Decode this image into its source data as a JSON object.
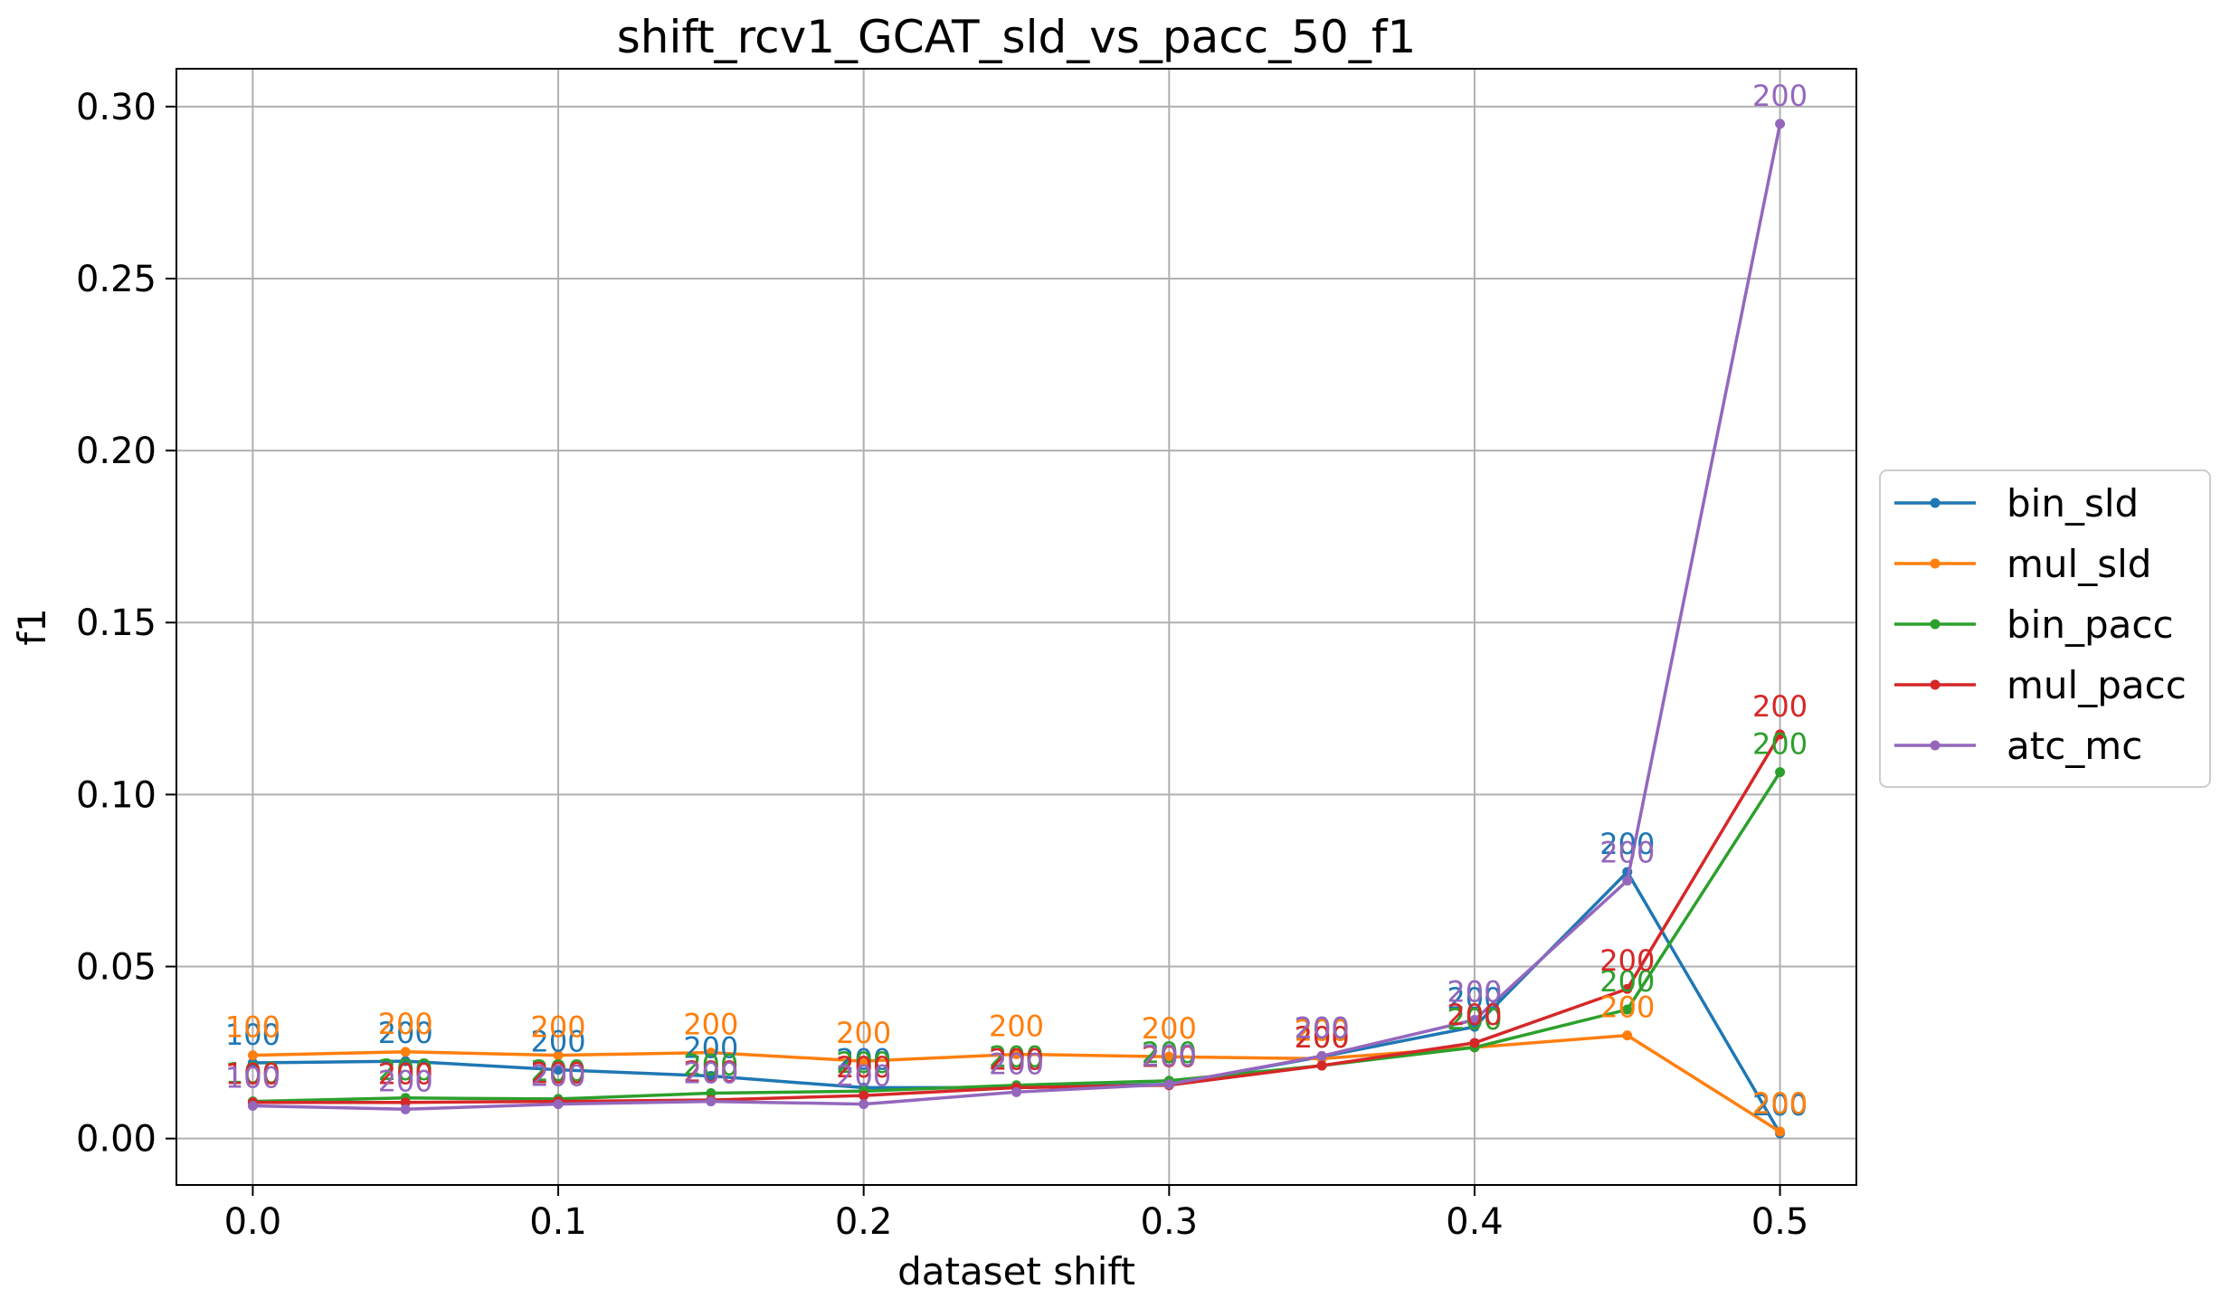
{
  "chart_data": {
    "type": "line",
    "title": "shift_rcv1_GCAT_sld_vs_pacc_50_f1",
    "xlabel": "dataset shift",
    "ylabel": "f1",
    "xlim": [
      -0.025,
      0.525
    ],
    "ylim": [
      -0.0135,
      0.311
    ],
    "grid": true,
    "legend_placement": "center-right outside",
    "x": [
      0.0,
      0.05,
      0.1,
      0.15,
      0.2,
      0.25,
      0.3,
      0.35,
      0.4,
      0.45,
      0.5
    ],
    "xticks": [
      0.0,
      0.1,
      0.2,
      0.3,
      0.4,
      0.5
    ],
    "xtick_labels": [
      "0.0",
      "0.1",
      "0.2",
      "0.3",
      "0.4",
      "0.5"
    ],
    "yticks": [
      0.0,
      0.05,
      0.1,
      0.15,
      0.2,
      0.25,
      0.3
    ],
    "ytick_labels": [
      "0.00",
      "0.05",
      "0.10",
      "0.15",
      "0.20",
      "0.25",
      "0.30"
    ],
    "series": [
      {
        "name": "bin_sld",
        "color": "#1f77b4",
        "values": [
          0.022,
          0.0225,
          0.02,
          0.0182,
          0.0148,
          0.0148,
          0.0158,
          0.0238,
          0.0325,
          0.0775,
          0.0015
        ],
        "labels": [
          "100",
          "200",
          "200",
          "200",
          "200",
          "200",
          "200",
          "200",
          "200",
          "200",
          "200"
        ]
      },
      {
        "name": "mul_sld",
        "color": "#ff7f0e",
        "values": [
          0.0242,
          0.0252,
          0.0242,
          0.025,
          0.0225,
          0.0245,
          0.0238,
          0.0232,
          0.0265,
          0.03,
          0.002
        ],
        "labels": [
          "100",
          "200",
          "200",
          "200",
          "200",
          "200",
          "200",
          "200",
          "200",
          "200",
          "200"
        ]
      },
      {
        "name": "bin_pacc",
        "color": "#2ca02c",
        "values": [
          0.0108,
          0.0118,
          0.0115,
          0.0132,
          0.0138,
          0.0155,
          0.0168,
          0.0212,
          0.0265,
          0.0375,
          0.1065
        ],
        "labels": [
          "100",
          "200",
          "200",
          "200",
          "200",
          "200",
          "200",
          "200",
          "200",
          "200",
          "200"
        ]
      },
      {
        "name": "mul_pacc",
        "color": "#d62728",
        "values": [
          0.0105,
          0.0105,
          0.0108,
          0.0112,
          0.0125,
          0.0148,
          0.0155,
          0.0212,
          0.0278,
          0.0435,
          0.1175
        ],
        "labels": [
          "100",
          "200",
          "200",
          "200",
          "200",
          "200",
          "200",
          "200",
          "200",
          "200",
          "200"
        ]
      },
      {
        "name": "atc_mc",
        "color": "#9467bd",
        "values": [
          0.0095,
          0.0085,
          0.01,
          0.0108,
          0.01,
          0.0135,
          0.0158,
          0.024,
          0.0345,
          0.075,
          0.295
        ],
        "labels": [
          "100",
          "200",
          "200",
          "200",
          "200",
          "200",
          "200",
          "200",
          "200",
          "200",
          "200"
        ]
      }
    ]
  }
}
